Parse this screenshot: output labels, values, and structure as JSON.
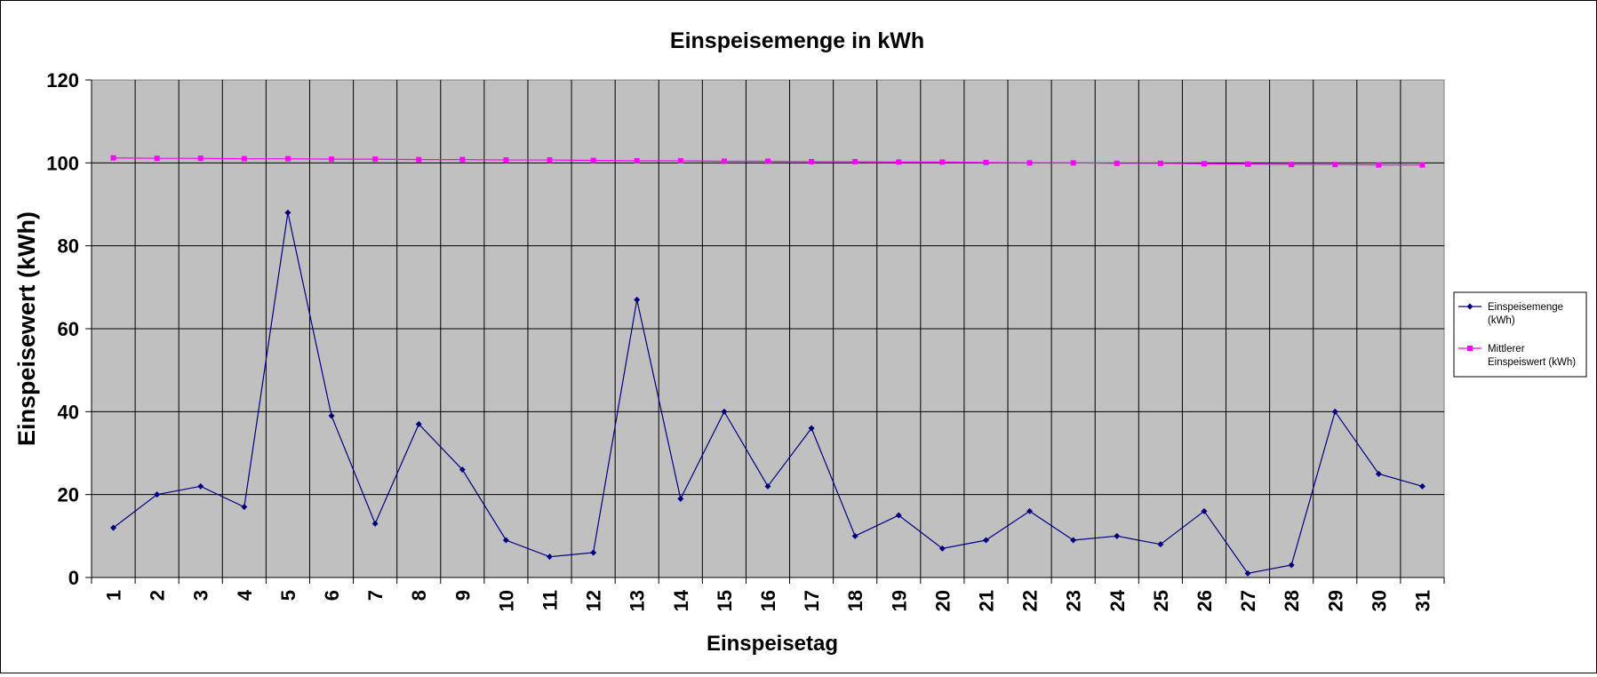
{
  "chart_data": {
    "type": "line",
    "title": "Einspeisemenge in kWh",
    "xlabel": "Einspeisetag",
    "ylabel": "Einspeisewert  (kWh)",
    "categories": [
      "1",
      "2",
      "3",
      "4",
      "5",
      "6",
      "7",
      "8",
      "9",
      "10",
      "11",
      "12",
      "13",
      "14",
      "15",
      "16",
      "17",
      "18",
      "19",
      "20",
      "21",
      "22",
      "23",
      "24",
      "25",
      "26",
      "27",
      "28",
      "29",
      "30",
      "31"
    ],
    "y_ticks": [
      "0",
      "20",
      "40",
      "60",
      "80",
      "100",
      "120"
    ],
    "ylim": [
      0,
      120
    ],
    "grid": true,
    "legend_position": "right",
    "plot_background": "#c0c0c0",
    "series": [
      {
        "name_lines": [
          "Einspeisemenge",
          "(kWh)"
        ],
        "color": "#000080",
        "marker": "diamond",
        "values": [
          12,
          20,
          22,
          17,
          88,
          39,
          13,
          37,
          26,
          9,
          5,
          6,
          67,
          19,
          40,
          22,
          36,
          10,
          15,
          7,
          9,
          16,
          9,
          10,
          8,
          16,
          1,
          3,
          40,
          25,
          22
        ]
      },
      {
        "name_lines": [
          "Mittlerer",
          "Einspeiswert (kWh)"
        ],
        "color": "#ff00ff",
        "marker": "square",
        "values": [
          101.2,
          101.1,
          101.1,
          101.0,
          101.0,
          100.9,
          100.9,
          100.8,
          100.8,
          100.7,
          100.7,
          100.6,
          100.5,
          100.5,
          100.4,
          100.4,
          100.3,
          100.3,
          100.2,
          100.2,
          100.1,
          100.0,
          100.0,
          99.9,
          99.9,
          99.8,
          99.7,
          99.6,
          99.6,
          99.5,
          99.5
        ]
      }
    ]
  }
}
